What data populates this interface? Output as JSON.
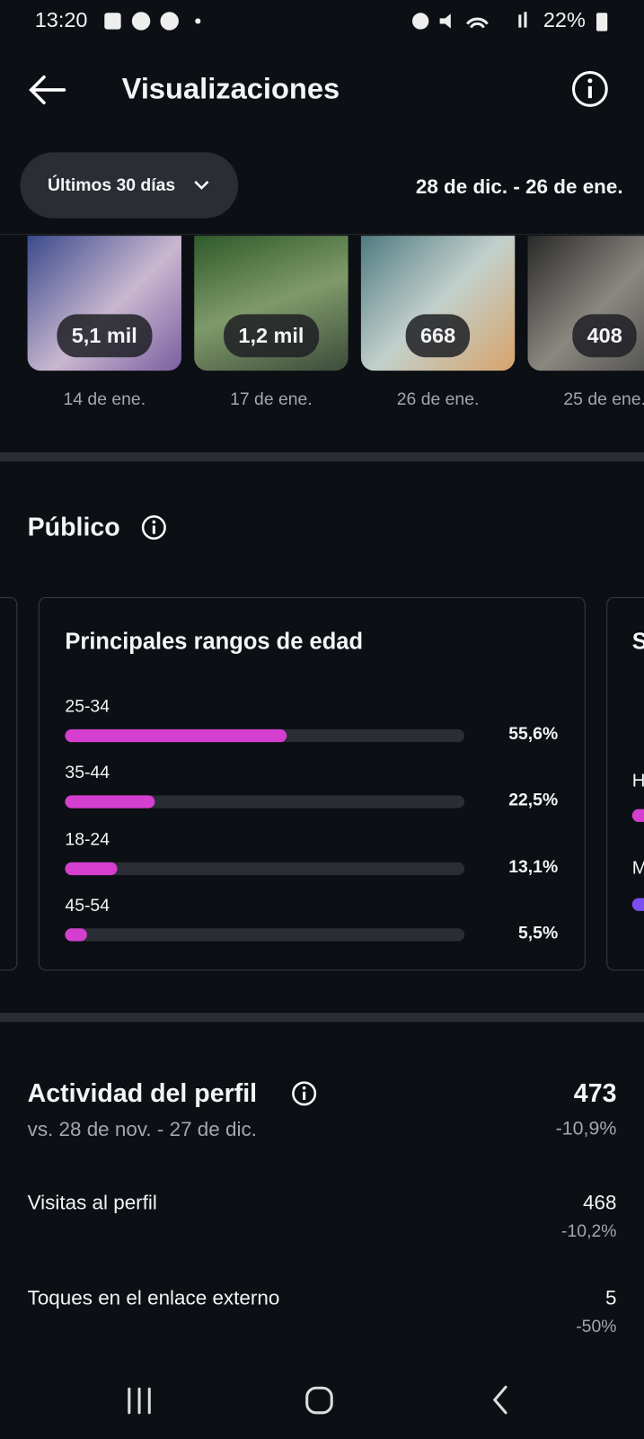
{
  "status_bar": {
    "time": "13:20",
    "battery": "22%"
  },
  "header": {
    "title": "Visualizaciones"
  },
  "filter": {
    "period": "Últimos 30 días",
    "date_range": "28 de dic. - 26 de ene."
  },
  "thumbnails": [
    {
      "count": "5,1 mil",
      "date": "14 de ene."
    },
    {
      "count": "1,2 mil",
      "date": "17 de ene."
    },
    {
      "count": "668",
      "date": "26 de ene."
    },
    {
      "count": "408",
      "date": "25 de ene."
    }
  ],
  "audience": {
    "title": "Público",
    "age_ranges": {
      "type": "bar",
      "title": "Principales rangos de edad",
      "categories": [
        "25-34",
        "35-44",
        "18-24",
        "45-54"
      ],
      "values": [
        55.6,
        22.5,
        13.1,
        5.5
      ],
      "value_labels": [
        "55,6%",
        "22,5%",
        "13,1%",
        "5,5%"
      ],
      "xlim": [
        0,
        100
      ],
      "color": "#d43fd0"
    },
    "next_card": {
      "title": "S",
      "rows": [
        "H",
        "M"
      ]
    }
  },
  "profile_activity": {
    "title": "Actividad del perfil",
    "comparison": "vs. 28 de nov. - 27 de dic.",
    "total": "473",
    "change": "-10,9%",
    "rows": [
      {
        "label": "Visitas al perfil",
        "value": "468",
        "change": "-10,2%"
      },
      {
        "label": "Toques en el enlace externo",
        "value": "5",
        "change": "-50%"
      }
    ]
  }
}
